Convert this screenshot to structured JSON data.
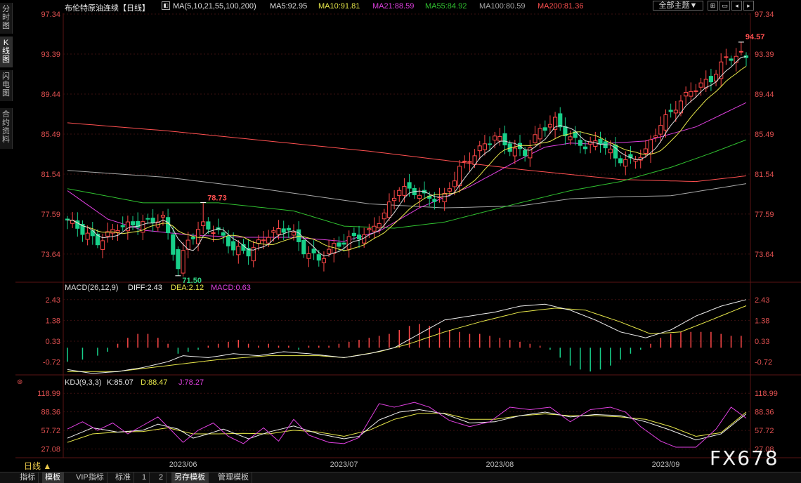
{
  "sidebar": {
    "tabs": [
      {
        "label": "分时图",
        "active": false
      },
      {
        "label": "K线图",
        "active": true
      },
      {
        "label": "闪电图",
        "active": false
      },
      {
        "label": "合约资料",
        "active": false
      }
    ]
  },
  "header": {
    "title": "布伦特原油连续【日线】",
    "ma_label": "MA(5,10,21,55,100,200)",
    "ma_values": [
      {
        "label": "MA5:92.95",
        "color": "#dddddd"
      },
      {
        "label": "MA10:91.81",
        "color": "#e8e84a"
      },
      {
        "label": "MA21:88.59",
        "color": "#e040e0"
      },
      {
        "label": "MA55:84.92",
        "color": "#30c030"
      },
      {
        "label": "MA100:80.59",
        "color": "#a8a8a8"
      },
      {
        "label": "MA200:81.36",
        "color": "#ff5050"
      }
    ],
    "theme_select": "全部主题▼",
    "icon_buttons": [
      "zoom-icon",
      "restore-icon",
      "prev-icon",
      "next-icon"
    ]
  },
  "colors": {
    "up": "#ff4848",
    "down": "#18d08a",
    "axis_text": "#e05050",
    "grid": "#3a1010",
    "ma5": "#dddddd",
    "ma10": "#e8e84a",
    "ma21": "#e040e0",
    "ma55": "#30c030",
    "ma100": "#a8a8a8",
    "ma200": "#ff5050",
    "diff": "#f0f0f0",
    "dea": "#e8e84a",
    "macd": "#e040e0",
    "k": "#f0f0f0",
    "d": "#e8e84a",
    "j": "#e040e0"
  },
  "macd_header": {
    "name": "MACD(26,12,9)",
    "diff": "DIFF:2.43",
    "dea": "DEA:2.12",
    "macd": "MACD:0.63"
  },
  "kdj_header": {
    "name": "KDJ(9,3,3)",
    "k": "K:85.07",
    "d": "D:88.47",
    "j": "J:78.27"
  },
  "bottom_bar": {
    "period": "日线 ▲",
    "tabs": [
      {
        "label": "指标",
        "active": false
      },
      {
        "label": "模板",
        "active": true
      },
      {
        "label": "VIP指标",
        "active": false
      },
      {
        "label": "标准",
        "active": false
      },
      {
        "label": "1",
        "active": false
      },
      {
        "label": "2",
        "active": false
      },
      {
        "label": "另存模板",
        "active": true
      },
      {
        "label": "管理模板",
        "active": false
      }
    ]
  },
  "watermark": "FX678",
  "chart_data": [
    {
      "type": "candlestick",
      "name": "price",
      "ylim": [
        71.0,
        97.34
      ],
      "yticks": [
        97.34,
        93.39,
        89.44,
        85.49,
        81.54,
        77.59,
        73.64
      ],
      "ytick_labels": [
        "97.34",
        "93.39",
        "89.44",
        "85.49",
        "81.54",
        "77.59",
        "73.64"
      ],
      "x_labels": [
        {
          "label": "2023/06",
          "index": 23
        },
        {
          "label": "2023/07",
          "index": 55
        },
        {
          "label": "2023/08",
          "index": 86
        },
        {
          "label": "2023/09",
          "index": 119
        }
      ],
      "annotations": [
        {
          "label": "78.73",
          "value": 78.73,
          "index": 27,
          "color": "#ff5050"
        },
        {
          "label": "71.50",
          "value": 71.5,
          "index": 22,
          "color": "#30d080"
        },
        {
          "label": "94.57",
          "value": 94.57,
          "index": 134,
          "color": "#ff5050"
        }
      ],
      "ma200": [
        [
          0,
          86.6
        ],
        [
          20,
          85.8
        ],
        [
          40,
          84.8
        ],
        [
          60,
          83.8
        ],
        [
          80,
          82.6
        ],
        [
          90,
          82.0
        ],
        [
          110,
          81.0
        ],
        [
          125,
          80.8
        ],
        [
          135,
          81.36
        ]
      ],
      "ma100": [
        [
          0,
          81.9
        ],
        [
          20,
          81.2
        ],
        [
          40,
          80.0
        ],
        [
          60,
          78.6
        ],
        [
          75,
          78.2
        ],
        [
          90,
          78.4
        ],
        [
          100,
          79.1
        ],
        [
          110,
          79.3
        ],
        [
          120,
          79.4
        ],
        [
          135,
          80.59
        ]
      ],
      "ma55": [
        [
          0,
          80.1
        ],
        [
          15,
          78.7
        ],
        [
          30,
          78.7
        ],
        [
          45,
          77.9
        ],
        [
          55,
          76.4
        ],
        [
          65,
          76.2
        ],
        [
          75,
          76.8
        ],
        [
          90,
          78.7
        ],
        [
          100,
          79.9
        ],
        [
          110,
          80.8
        ],
        [
          120,
          82.2
        ],
        [
          128,
          83.6
        ],
        [
          135,
          84.92
        ]
      ],
      "ma21": [
        [
          0,
          79.9
        ],
        [
          8,
          77.1
        ],
        [
          15,
          76.0
        ],
        [
          25,
          75.5
        ],
        [
          35,
          75.3
        ],
        [
          45,
          75.3
        ],
        [
          55,
          74.9
        ],
        [
          62,
          75.9
        ],
        [
          70,
          78.2
        ],
        [
          80,
          80.3
        ],
        [
          90,
          83.0
        ],
        [
          95,
          84.2
        ],
        [
          100,
          84.6
        ],
        [
          105,
          84.5
        ],
        [
          115,
          84.8
        ],
        [
          125,
          86.2
        ],
        [
          135,
          88.59
        ]
      ]
    },
    {
      "type": "bar+line",
      "name": "MACD",
      "ylim": [
        -1.3,
        2.6
      ],
      "yticks": [
        2.43,
        1.38,
        0.33,
        -0.72
      ],
      "ytick_labels": [
        "2.43",
        "1.38",
        "0.33",
        "-0.72"
      ],
      "diff": [
        [
          0,
          -1.1
        ],
        [
          5,
          -1.3
        ],
        [
          10,
          -1.2
        ],
        [
          15,
          -1.0
        ],
        [
          20,
          -0.7
        ],
        [
          23,
          -0.4
        ],
        [
          28,
          -0.5
        ],
        [
          33,
          -0.3
        ],
        [
          38,
          -0.4
        ],
        [
          43,
          -0.2
        ],
        [
          48,
          -0.3
        ],
        [
          55,
          -0.5
        ],
        [
          60,
          -0.3
        ],
        [
          65,
          0.0
        ],
        [
          70,
          0.7
        ],
        [
          75,
          1.4
        ],
        [
          80,
          1.6
        ],
        [
          85,
          1.8
        ],
        [
          90,
          2.1
        ],
        [
          95,
          2.2
        ],
        [
          100,
          1.9
        ],
        [
          105,
          1.4
        ],
        [
          110,
          0.8
        ],
        [
          115,
          0.5
        ],
        [
          120,
          0.9
        ],
        [
          125,
          1.6
        ],
        [
          130,
          2.1
        ],
        [
          135,
          2.43
        ]
      ],
      "dea": [
        [
          0,
          -1.2
        ],
        [
          10,
          -1.2
        ],
        [
          20,
          -0.9
        ],
        [
          30,
          -0.6
        ],
        [
          40,
          -0.4
        ],
        [
          50,
          -0.4
        ],
        [
          55,
          -0.5
        ],
        [
          62,
          -0.2
        ],
        [
          68,
          0.2
        ],
        [
          75,
          0.8
        ],
        [
          82,
          1.3
        ],
        [
          90,
          1.8
        ],
        [
          97,
          2.0
        ],
        [
          103,
          1.9
        ],
        [
          110,
          1.3
        ],
        [
          116,
          0.7
        ],
        [
          122,
          0.8
        ],
        [
          128,
          1.4
        ],
        [
          135,
          2.12
        ]
      ],
      "macd_bars": [
        [
          0,
          -0.7
        ],
        [
          3,
          -0.6
        ],
        [
          6,
          -0.4
        ],
        [
          8,
          -0.2
        ],
        [
          10,
          0.2
        ],
        [
          12,
          0.5
        ],
        [
          14,
          0.7
        ],
        [
          16,
          0.7
        ],
        [
          18,
          0.5
        ],
        [
          20,
          0.2
        ],
        [
          22,
          -0.3
        ],
        [
          24,
          -0.2
        ],
        [
          26,
          -0.1
        ],
        [
          28,
          0.1
        ],
        [
          30,
          0.2
        ],
        [
          32,
          0.3
        ],
        [
          34,
          0.4
        ],
        [
          36,
          0.2
        ],
        [
          38,
          0.1
        ],
        [
          40,
          0.2
        ],
        [
          42,
          0.1
        ],
        [
          44,
          0.1
        ],
        [
          46,
          -0.1
        ],
        [
          48,
          0.1
        ],
        [
          50,
          0.1
        ],
        [
          52,
          0.1
        ],
        [
          54,
          0.2
        ],
        [
          56,
          0.3
        ],
        [
          58,
          0.4
        ],
        [
          60,
          0.5
        ],
        [
          62,
          0.6
        ],
        [
          64,
          0.7
        ],
        [
          66,
          0.9
        ],
        [
          68,
          1.1
        ],
        [
          70,
          1.2
        ],
        [
          72,
          1.1
        ],
        [
          74,
          1.0
        ],
        [
          76,
          0.9
        ],
        [
          78,
          0.8
        ],
        [
          80,
          0.7
        ],
        [
          82,
          0.7
        ],
        [
          84,
          0.6
        ],
        [
          86,
          0.5
        ],
        [
          88,
          0.4
        ],
        [
          90,
          0.3
        ],
        [
          92,
          0.2
        ],
        [
          94,
          0.1
        ],
        [
          96,
          -0.1
        ],
        [
          98,
          -0.5
        ],
        [
          100,
          -0.9
        ],
        [
          102,
          -1.1
        ],
        [
          104,
          -1.2
        ],
        [
          106,
          -1.1
        ],
        [
          108,
          -0.9
        ],
        [
          110,
          -0.6
        ],
        [
          112,
          -0.3
        ],
        [
          114,
          -0.1
        ],
        [
          116,
          0.2
        ],
        [
          118,
          0.5
        ],
        [
          120,
          0.7
        ],
        [
          122,
          0.8
        ],
        [
          124,
          0.8
        ],
        [
          126,
          0.8
        ],
        [
          128,
          0.8
        ],
        [
          130,
          0.7
        ],
        [
          132,
          0.6
        ],
        [
          134,
          0.6
        ]
      ]
    },
    {
      "type": "line",
      "name": "KDJ",
      "ylim": [
        15,
        125
      ],
      "yticks": [
        118.99,
        88.36,
        57.72,
        27.08
      ],
      "ytick_labels": [
        "118.99",
        "88.36",
        "57.72",
        "27.08"
      ],
      "k": [
        [
          0,
          45
        ],
        [
          5,
          62
        ],
        [
          10,
          55
        ],
        [
          15,
          58
        ],
        [
          18,
          68
        ],
        [
          22,
          60
        ],
        [
          25,
          45
        ],
        [
          28,
          52
        ],
        [
          31,
          60
        ],
        [
          36,
          44
        ],
        [
          40,
          55
        ],
        [
          45,
          65
        ],
        [
          50,
          52
        ],
        [
          55,
          44
        ],
        [
          58,
          48
        ],
        [
          62,
          75
        ],
        [
          66,
          88
        ],
        [
          70,
          92
        ],
        [
          75,
          85
        ],
        [
          80,
          70
        ],
        [
          85,
          72
        ],
        [
          90,
          82
        ],
        [
          95,
          88
        ],
        [
          100,
          80
        ],
        [
          105,
          84
        ],
        [
          110,
          82
        ],
        [
          115,
          72
        ],
        [
          120,
          58
        ],
        [
          125,
          42
        ],
        [
          130,
          52
        ],
        [
          135,
          85
        ]
      ],
      "d": [
        [
          0,
          38
        ],
        [
          5,
          52
        ],
        [
          10,
          55
        ],
        [
          15,
          56
        ],
        [
          20,
          62
        ],
        [
          25,
          52
        ],
        [
          30,
          52
        ],
        [
          35,
          53
        ],
        [
          40,
          52
        ],
        [
          45,
          58
        ],
        [
          50,
          55
        ],
        [
          55,
          48
        ],
        [
          60,
          58
        ],
        [
          65,
          76
        ],
        [
          70,
          86
        ],
        [
          75,
          86
        ],
        [
          80,
          76
        ],
        [
          85,
          76
        ],
        [
          90,
          82
        ],
        [
          95,
          85
        ],
        [
          100,
          82
        ],
        [
          105,
          82
        ],
        [
          110,
          80
        ],
        [
          115,
          76
        ],
        [
          120,
          64
        ],
        [
          125,
          48
        ],
        [
          130,
          54
        ],
        [
          135,
          88
        ]
      ],
      "j": [
        [
          0,
          60
        ],
        [
          3,
          72
        ],
        [
          6,
          58
        ],
        [
          9,
          70
        ],
        [
          12,
          52
        ],
        [
          15,
          66
        ],
        [
          18,
          80
        ],
        [
          21,
          55
        ],
        [
          23,
          38
        ],
        [
          26,
          58
        ],
        [
          29,
          70
        ],
        [
          32,
          48
        ],
        [
          35,
          36
        ],
        [
          39,
          62
        ],
        [
          42,
          40
        ],
        [
          45,
          76
        ],
        [
          48,
          50
        ],
        [
          52,
          38
        ],
        [
          55,
          36
        ],
        [
          58,
          46
        ],
        [
          62,
          102
        ],
        [
          65,
          96
        ],
        [
          69,
          104
        ],
        [
          72,
          96
        ],
        [
          76,
          74
        ],
        [
          80,
          64
        ],
        [
          84,
          72
        ],
        [
          88,
          96
        ],
        [
          92,
          92
        ],
        [
          96,
          96
        ],
        [
          100,
          72
        ],
        [
          104,
          92
        ],
        [
          108,
          96
        ],
        [
          111,
          88
        ],
        [
          114,
          64
        ],
        [
          118,
          40
        ],
        [
          121,
          30
        ],
        [
          125,
          30
        ],
        [
          129,
          60
        ],
        [
          132,
          96
        ],
        [
          135,
          78
        ]
      ]
    }
  ]
}
